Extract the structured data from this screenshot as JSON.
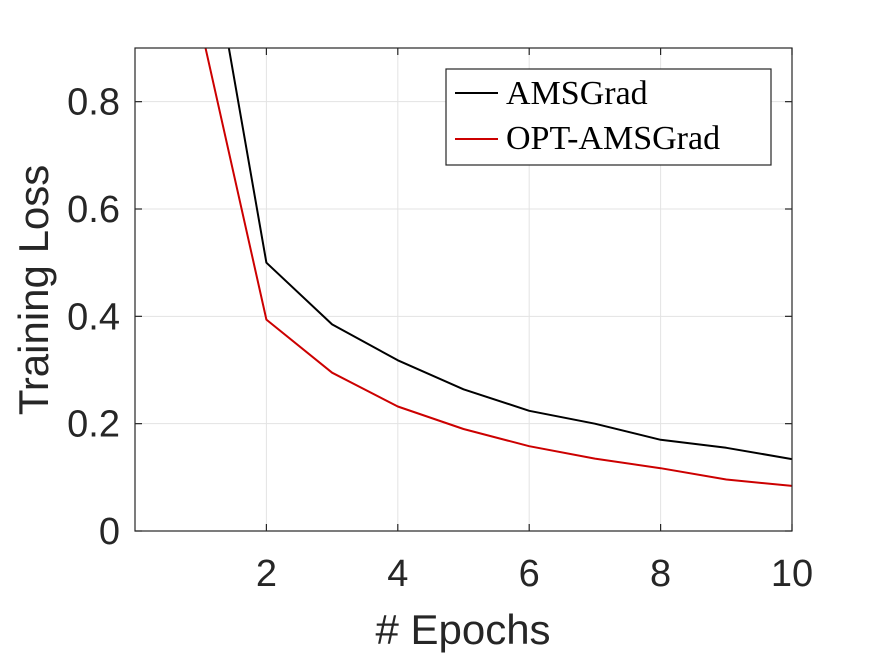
{
  "chart_data": {
    "type": "line",
    "xlabel": "# Epochs",
    "ylabel": "Training Loss",
    "xlim": [
      0,
      10
    ],
    "ylim": [
      0,
      0.9
    ],
    "xticks": [
      2,
      4,
      6,
      8,
      10
    ],
    "yticks": [
      0,
      0.2,
      0.4,
      0.6,
      0.8
    ],
    "xtick_labels": [
      "2",
      "4",
      "6",
      "8",
      "10"
    ],
    "ytick_labels": [
      "0",
      "0.2",
      "0.4",
      "0.6",
      "0.8"
    ],
    "grid": true,
    "legend_position": "top-right",
    "series": [
      {
        "name": "AMSGrad",
        "color": "#000000",
        "x": [
          1,
          2,
          3,
          4,
          5,
          6,
          7,
          8,
          9,
          10
        ],
        "y": [
          1.2,
          0.5,
          0.385,
          0.318,
          0.264,
          0.224,
          0.2,
          0.17,
          0.155,
          0.134
        ]
      },
      {
        "name": "OPT-AMSGrad",
        "color": "#cc0000",
        "x": [
          1,
          2,
          3,
          4,
          5,
          6,
          7,
          8,
          9,
          10
        ],
        "y": [
          0.94,
          0.394,
          0.295,
          0.232,
          0.19,
          0.158,
          0.135,
          0.117,
          0.096,
          0.084
        ]
      }
    ]
  }
}
